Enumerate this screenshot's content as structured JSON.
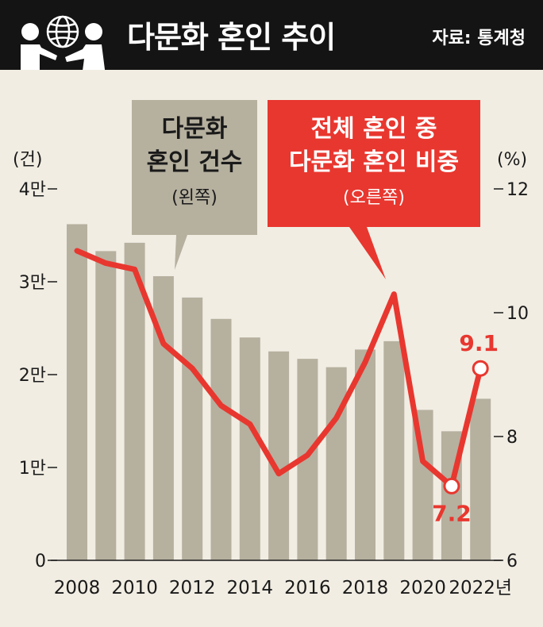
{
  "header": {
    "title": "다문화 혼인 추이",
    "source": "자료: 통계청"
  },
  "colors": {
    "header_bg": "#141414",
    "background": "#f1ede3",
    "bar": "#b6b09f",
    "line": "#e8372f",
    "callout_gray": "#b6b09f",
    "callout_red": "#e8372f",
    "text": "#1a1a1a"
  },
  "icons": [
    "people-globe-icon"
  ],
  "chart_data": {
    "type": "bar",
    "categories": [
      "2008",
      "2009",
      "2010",
      "2011",
      "2012",
      "2013",
      "2014",
      "2015",
      "2016",
      "2017",
      "2018",
      "2019",
      "2020",
      "2021",
      "2022"
    ],
    "x_tick_labels": [
      "2008",
      "2010",
      "2012",
      "2014",
      "2016",
      "2018",
      "2020",
      "2022년"
    ],
    "left_axis": {
      "unit": "(건)",
      "ylim": [
        0,
        40000
      ],
      "ticks": [
        0,
        10000,
        20000,
        30000,
        40000
      ],
      "tick_labels": [
        "0",
        "1만",
        "2만",
        "3만",
        "4만"
      ]
    },
    "right_axis": {
      "unit": "(%)",
      "ylim": [
        6,
        12
      ],
      "ticks": [
        6,
        8,
        10,
        12
      ],
      "tick_labels": [
        "6",
        "8",
        "10",
        "12"
      ]
    },
    "series": [
      {
        "name": "다문화 혼인 건수",
        "axis": "left",
        "type": "bar",
        "values": [
          36200,
          33300,
          34200,
          30600,
          28300,
          26000,
          24000,
          22500,
          21700,
          20800,
          22700,
          23600,
          16200,
          13900,
          17400
        ]
      },
      {
        "name": "전체 혼인 중 다문화 혼인 비중",
        "axis": "right",
        "type": "line",
        "values": [
          11.0,
          10.8,
          10.7,
          9.5,
          9.1,
          8.5,
          8.2,
          7.4,
          7.7,
          8.3,
          9.2,
          10.3,
          7.6,
          7.2,
          9.1
        ]
      }
    ],
    "data_labels": [
      {
        "series": 1,
        "index": 13,
        "text": "7.2"
      },
      {
        "series": 1,
        "index": 14,
        "text": "9.1"
      }
    ],
    "callouts": [
      {
        "series": 0,
        "lines": [
          "다문화",
          "혼인 건수"
        ],
        "note": "(왼쪽)"
      },
      {
        "series": 1,
        "lines": [
          "전체 혼인 중",
          "다문화 혼인 비중"
        ],
        "note": "(오른쪽)"
      }
    ],
    "grid": false
  }
}
